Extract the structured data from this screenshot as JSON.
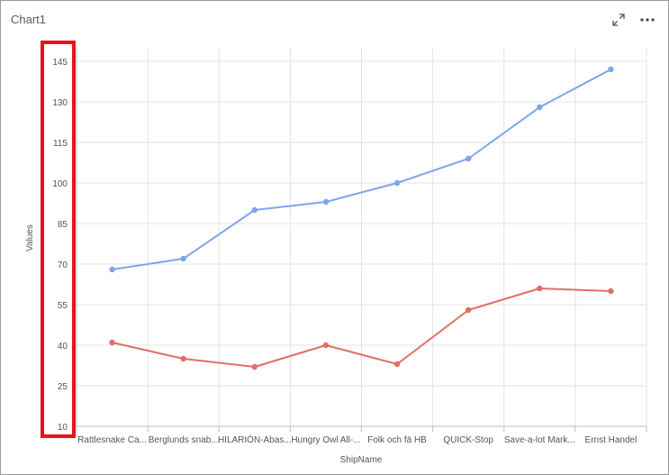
{
  "header": {
    "title": "Chart1",
    "expand_icon": "expand-icon",
    "more_icon": "more-options-icon"
  },
  "highlight_color": "#e8141c",
  "chart_data": {
    "type": "line",
    "categories": [
      "Rattlesnake Ca...",
      "Berglunds snab...",
      "HILARIÓN-Abas...",
      "Hungry Owl All-...",
      "Folk och fä HB",
      "QUICK-Stop",
      "Save-a-lot Mark...",
      "Ernst Handel"
    ],
    "series": [
      {
        "color": "#7ea6ea",
        "values": [
          68,
          72,
          90,
          93,
          100,
          109,
          128,
          142
        ]
      },
      {
        "color": "#e07066",
        "values": [
          41,
          35,
          32,
          40,
          33,
          53,
          61,
          60
        ]
      }
    ],
    "xlabel": "ShipName",
    "ylabel": "Values",
    "ylim": [
      10,
      150
    ],
    "yticks": [
      10,
      25,
      40,
      55,
      70,
      85,
      100,
      115,
      130,
      145
    ],
    "grid": true,
    "legend": "none"
  }
}
